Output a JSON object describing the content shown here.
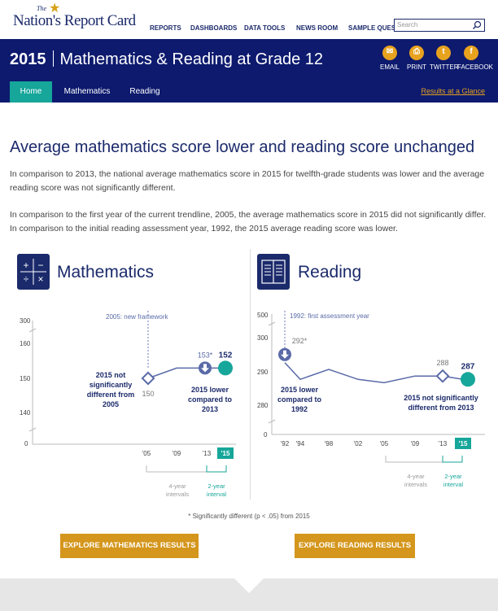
{
  "logo": {
    "the": "The",
    "name": "Nation's Report Card"
  },
  "nav": [
    "REPORTS",
    "DASHBOARDS",
    "DATA TOOLS",
    "NEWS ROOM",
    "SAMPLE QUESTIONS"
  ],
  "search": {
    "placeholder": "Search"
  },
  "header": {
    "year": "2015",
    "title": "Mathematics & Reading at Grade 12"
  },
  "share": [
    "EMAIL",
    "PRINT",
    "TWITTER",
    "FACEBOOK"
  ],
  "tabs": [
    "Home",
    "Mathematics",
    "Reading"
  ],
  "glance_link": "Results at a Glance",
  "headline": "Average mathematics score lower and reading score unchanged",
  "para1": "In comparison to 2013, the national average mathematics score in 2015 for twelfth-grade students was lower and the average reading score was not significantly different.",
  "para2": "In comparison to the first year of the current trendline, 2005, the average mathematics score in 2015 did not significantly differ. In comparison to the initial reading assessment year, 1992, the 2015 average reading score was lower.",
  "math": {
    "title": "Mathematics",
    "icon": "calculator-icon",
    "yticks": [
      "300",
      "160",
      "150",
      "140",
      "0"
    ],
    "annotation": "2005: new framework",
    "note_left": [
      "2015 not",
      "significantly",
      "different from",
      "2005"
    ],
    "note_right": [
      "2015 lower",
      "compared to",
      "2013"
    ],
    "xticks": [
      "'05",
      "'09",
      "'13",
      "'15"
    ],
    "interval4": [
      "4-year",
      "intervals"
    ],
    "interval2": [
      "2-year",
      "interval"
    ],
    "label_first": "150",
    "label_prev": "153*",
    "label_last": "152",
    "button": "EXPLORE MATHEMATICS RESULTS"
  },
  "reading": {
    "title": "Reading",
    "icon": "book-icon",
    "yticks": [
      "500",
      "300",
      "290",
      "280",
      "0"
    ],
    "annotation": "1992: first assessment year",
    "note_left": [
      "2015 lower",
      "compared to",
      "1992"
    ],
    "note_right": [
      "2015 not significantly",
      "different from 2013"
    ],
    "xticks": [
      "'92",
      "'94",
      "'98",
      "'02",
      "'05",
      "'09",
      "'13",
      "'15"
    ],
    "interval4": [
      "4-year",
      "intervals"
    ],
    "interval2": [
      "2-year",
      "interval"
    ],
    "label_first": "292*",
    "label_prev": "288",
    "label_last": "287",
    "button": "EXPLORE READING RESULTS"
  },
  "chart_data": [
    {
      "type": "line",
      "title": "Mathematics",
      "x": [
        "2005",
        "2009",
        "2013",
        "2015"
      ],
      "series": [
        {
          "values": [
            150,
            153,
            153,
            152
          ]
        }
      ],
      "ylim": [
        140,
        160
      ]
    },
    {
      "type": "line",
      "title": "Reading",
      "x": [
        "1992",
        "1994",
        "1998",
        "2002",
        "2005",
        "2009",
        "2013",
        "2015"
      ],
      "series": [
        {
          "values": [
            292,
            287,
            290,
            287,
            286,
            288,
            288,
            287
          ]
        }
      ],
      "ylim": [
        280,
        300
      ]
    }
  ],
  "footnote": "* Significantly different (p < .05) from 2015",
  "colors": {
    "navy": "#0d1a6e",
    "teal": "#16a69a",
    "gold": "#d4961c",
    "line": "#5a6aa8"
  }
}
